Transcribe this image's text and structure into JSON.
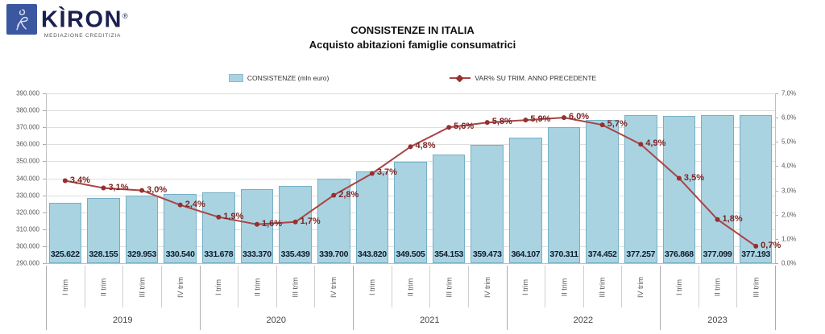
{
  "logo": {
    "brand": "KÌRON",
    "registered": "®",
    "tagline": "MEDIAZIONE CREDITIZIA"
  },
  "title": "CONSISTENZE IN ITALIA",
  "subtitle": "Acquisto abitazioni famiglie consumatrici",
  "legend": {
    "bars_label": "CONSISTENZE (mln euro)",
    "line_label": "VAR% SU TRIM. ANNO PRECEDENTE"
  },
  "colors": {
    "bar_fill": "#A9D3E1",
    "bar_border": "#76AFC6",
    "line": "#A84444",
    "marker": "#962F2F",
    "var_label": "#7D2323",
    "bar_label": "#0F1C2B"
  },
  "chart_data": {
    "type": "bar",
    "combo": "bar+line",
    "categories": [
      "I trim",
      "II trim",
      "III trim",
      "IV trim",
      "I trim",
      "II trim",
      "III trim",
      "IV trim",
      "I trim",
      "II trim",
      "III trim",
      "IV trim",
      "I trim",
      "II trim",
      "III trim",
      "IV trim",
      "I trim",
      "II trim",
      "III trim"
    ],
    "year_groups": [
      {
        "label": "2019",
        "count": 4
      },
      {
        "label": "2020",
        "count": 4
      },
      {
        "label": "2021",
        "count": 4
      },
      {
        "label": "2022",
        "count": 4
      },
      {
        "label": "2023",
        "count": 3
      }
    ],
    "series": [
      {
        "name": "CONSISTENZE (mln euro)",
        "type": "bar",
        "axis": "left",
        "values": [
          325622,
          328155,
          329953,
          330540,
          331678,
          333370,
          335439,
          339700,
          343820,
          349505,
          354153,
          359473,
          364107,
          370311,
          374452,
          377257,
          376868,
          377099,
          377193
        ],
        "labels": [
          "325.622",
          "328.155",
          "329.953",
          "330.540",
          "331.678",
          "333.370",
          "335.439",
          "339.700",
          "343.820",
          "349.505",
          "354.153",
          "359.473",
          "364.107",
          "370.311",
          "374.452",
          "377.257",
          "376.868",
          "377.099",
          "377.193"
        ]
      },
      {
        "name": "VAR% SU TRIM. ANNO PRECEDENTE",
        "type": "line",
        "axis": "right",
        "values": [
          3.4,
          3.1,
          3.0,
          2.4,
          1.9,
          1.6,
          1.7,
          2.8,
          3.7,
          4.8,
          5.6,
          5.8,
          5.9,
          6.0,
          5.7,
          4.9,
          3.5,
          1.8,
          0.7
        ],
        "labels": [
          "3,4%",
          "3,1%",
          "3,0%",
          "2,4%",
          "1,9%",
          "1,6%",
          "1,7%",
          "2,8%",
          "3,7%",
          "4,8%",
          "5,6%",
          "5,8%",
          "5,9%",
          "6,0%",
          "5,7%",
          "4,9%",
          "3,5%",
          "1,8%",
          "0,7%"
        ]
      }
    ],
    "left_axis": {
      "min": 290000,
      "max": 390000,
      "step": 10000,
      "tick_labels": [
        "290.000",
        "300.000",
        "310.000",
        "320.000",
        "330.000",
        "340.000",
        "350.000",
        "360.000",
        "370.000",
        "380.000",
        "390.000"
      ]
    },
    "right_axis": {
      "min": 0,
      "max": 7,
      "step": 1,
      "tick_labels": [
        "0,0%",
        "1,0%",
        "2,0%",
        "3,0%",
        "4,0%",
        "5,0%",
        "6,0%",
        "7,0%"
      ]
    },
    "grid": true,
    "legend_position": "top"
  }
}
